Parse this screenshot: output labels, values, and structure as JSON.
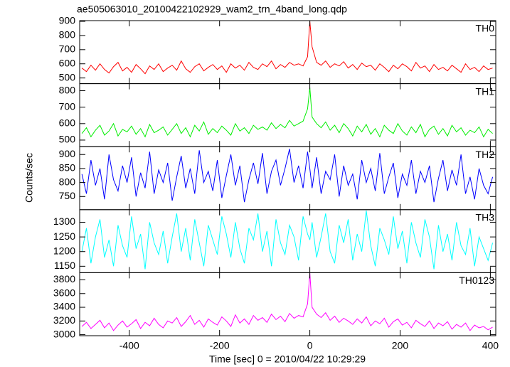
{
  "chart_data": {
    "type": "line",
    "title": "ae505063010_20100422102929_wam2_trn_4band_long.qdp",
    "xlabel": "Time [sec] 0 = 2010/04/22 10:29:29",
    "ylabel": "Counts/sec",
    "xlim": [
      -510,
      412
    ],
    "xticks": [
      -400,
      -200,
      0,
      200,
      400
    ],
    "x": [
      -505,
      -495,
      -485,
      -475,
      -465,
      -455,
      -445,
      -435,
      -425,
      -415,
      -405,
      -395,
      -385,
      -375,
      -365,
      -355,
      -345,
      -335,
      -325,
      -315,
      -305,
      -295,
      -285,
      -275,
      -265,
      -255,
      -245,
      -235,
      -225,
      -215,
      -205,
      -195,
      -185,
      -175,
      -165,
      -155,
      -145,
      -135,
      -125,
      -115,
      -105,
      -95,
      -85,
      -75,
      -65,
      -55,
      -45,
      -35,
      -25,
      -15,
      -5,
      0,
      5,
      15,
      25,
      35,
      45,
      55,
      65,
      75,
      85,
      95,
      105,
      115,
      125,
      135,
      145,
      155,
      165,
      175,
      185,
      195,
      205,
      215,
      225,
      235,
      245,
      255,
      265,
      275,
      285,
      295,
      305,
      315,
      325,
      335,
      345,
      355,
      365,
      375,
      385,
      395,
      405
    ],
    "series": [
      {
        "name": "TH0",
        "color": "#ff0000",
        "ylim": [
          460,
          905
        ],
        "yticks": [
          500,
          600,
          700,
          800,
          900
        ],
        "values": [
          570,
          545,
          590,
          555,
          600,
          560,
          535,
          580,
          610,
          550,
          575,
          540,
          595,
          565,
          530,
          585,
          560,
          600,
          545,
          570,
          590,
          555,
          620,
          565,
          540,
          580,
          600,
          550,
          575,
          595,
          560,
          585,
          540,
          600,
          570,
          590,
          555,
          610,
          575,
          560,
          600,
          580,
          620,
          565,
          595,
          575,
          610,
          590,
          600,
          585,
          650,
          900,
          720,
          610,
          590,
          620,
          575,
          600,
          585,
          615,
          570,
          595,
          560,
          605,
          580,
          590,
          555,
          600,
          575,
          545,
          590,
          565,
          600,
          580,
          550,
          610,
          570,
          585,
          545,
          595,
          560,
          575,
          550,
          590,
          565,
          540,
          600,
          560,
          575,
          545,
          585,
          560,
          570
        ]
      },
      {
        "name": "TH1",
        "color": "#00ee00",
        "ylim": [
          460,
          843
        ],
        "yticks": [
          500,
          600,
          700,
          800
        ],
        "values": [
          540,
          575,
          520,
          560,
          590,
          530,
          555,
          600,
          525,
          565,
          550,
          585,
          535,
          570,
          520,
          595,
          545,
          560,
          580,
          530,
          565,
          600,
          540,
          575,
          520,
          590,
          555,
          610,
          535,
          570,
          545,
          585,
          560,
          530,
          600,
          555,
          575,
          540,
          590,
          565,
          580,
          560,
          605,
          570,
          595,
          575,
          620,
          585,
          600,
          615,
          690,
          820,
          640,
          600,
          575,
          610,
          560,
          590,
          545,
          600,
          570,
          525,
          585,
          550,
          595,
          535,
          570,
          520,
          590,
          560,
          540,
          600,
          555,
          530,
          580,
          545,
          595,
          520,
          565,
          585,
          535,
          570,
          525,
          590,
          550,
          575,
          530,
          560,
          545,
          580,
          520,
          565,
          540
        ]
      },
      {
        "name": "TH2",
        "color": "#0000ff",
        "ylim": [
          703,
          928
        ],
        "yticks": [
          750,
          800,
          850,
          900
        ],
        "values": [
          830,
          760,
          880,
          790,
          850,
          740,
          900,
          810,
          770,
          860,
          800,
          890,
          750,
          835,
          780,
          910,
          760,
          845,
          800,
          870,
          735,
          820,
          895,
          780,
          850,
          760,
          915,
          800,
          840,
          770,
          880,
          745,
          825,
          900,
          790,
          860,
          730,
          810,
          870,
          795,
          905,
          760,
          840,
          880,
          790,
          850,
          920,
          800,
          860,
          780,
          910,
          850,
          780,
          890,
          760,
          840,
          810,
          900,
          750,
          860,
          790,
          830,
          740,
          880,
          800,
          850,
          770,
          905,
          760,
          820,
          870,
          745,
          830,
          790,
          880,
          760,
          840,
          800,
          860,
          730,
          815,
          880,
          770,
          845,
          790,
          900,
          760,
          820,
          740,
          850,
          790,
          760,
          820
        ]
      },
      {
        "name": "TH3",
        "color": "#00ffff",
        "ylim": [
          1128,
          1343
        ],
        "yticks": [
          1150,
          1200,
          1250,
          1300
        ],
        "values": [
          1200,
          1280,
          1160,
          1250,
          1310,
          1180,
          1240,
          1150,
          1290,
          1220,
          1180,
          1320,
          1210,
          1260,
          1140,
          1300,
          1230,
          1190,
          1270,
          1160,
          1250,
          1330,
          1200,
          1280,
          1170,
          1310,
          1230,
          1150,
          1290,
          1240,
          1190,
          1320,
          1260,
          1180,
          1300,
          1210,
          1160,
          1280,
          1240,
          1330,
          1200,
          1270,
          1150,
          1310,
          1230,
          1190,
          1290,
          1250,
          1170,
          1320,
          1260,
          1240,
          1300,
          1180,
          1250,
          1330,
          1200,
          1160,
          1290,
          1230,
          1310,
          1170,
          1260,
          1200,
          1340,
          1220,
          1150,
          1280,
          1240,
          1190,
          1320,
          1210,
          1270,
          1160,
          1300,
          1230,
          1180,
          1310,
          1250,
          1140,
          1290,
          1200,
          1260,
          1170,
          1300,
          1220,
          1190,
          1280,
          1150,
          1250,
          1210,
          1170,
          1230
        ]
      },
      {
        "name": "TH0123",
        "color": "#ff00ff",
        "ylim": [
          2985,
          3905
        ],
        "yticks": [
          3000,
          3200,
          3400,
          3600,
          3800
        ],
        "values": [
          3120,
          3180,
          3090,
          3150,
          3210,
          3100,
          3170,
          3060,
          3140,
          3200,
          3110,
          3160,
          3220,
          3090,
          3180,
          3130,
          3240,
          3150,
          3100,
          3200,
          3170,
          3250,
          3120,
          3190,
          3280,
          3150,
          3210,
          3110,
          3230,
          3180,
          3140,
          3260,
          3200,
          3120,
          3290,
          3170,
          3230,
          3150,
          3280,
          3210,
          3250,
          3180,
          3300,
          3220,
          3270,
          3190,
          3310,
          3240,
          3280,
          3260,
          3450,
          3900,
          3400,
          3300,
          3250,
          3320,
          3210,
          3270,
          3180,
          3240,
          3200,
          3150,
          3230,
          3170,
          3260,
          3130,
          3200,
          3160,
          3240,
          3110,
          3190,
          3230,
          3140,
          3180,
          3100,
          3210,
          3160,
          3120,
          3200,
          3090,
          3170,
          3130,
          3190,
          3080,
          3150,
          3110,
          3170,
          3060,
          3140,
          3100,
          3120,
          3070,
          3110
        ]
      }
    ]
  }
}
